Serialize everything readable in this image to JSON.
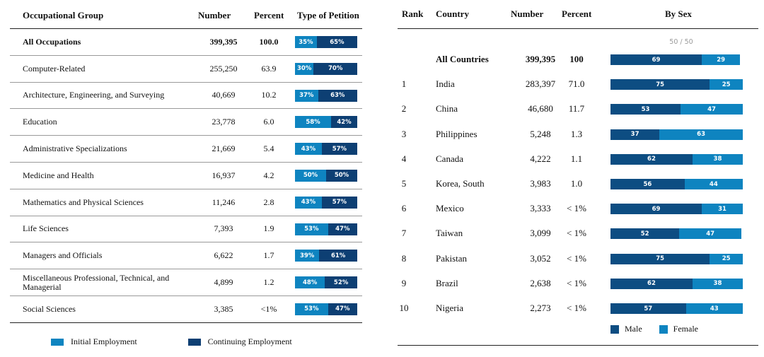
{
  "colors": {
    "initial": "#0e84c0",
    "continuing": "#0d3f73",
    "male": "#0d4d82",
    "female": "#0e84c0"
  },
  "chart_data": [
    {
      "type": "table",
      "columns": [
        "Occupational Group",
        "Number",
        "Percent",
        "Type of Petition"
      ],
      "legend": [
        "Initial Employment",
        "Continuing Employment"
      ],
      "rows": [
        {
          "group": "All Occupations",
          "number": "399,395",
          "percent": "100.0",
          "initial": 35,
          "continuing": 65,
          "initial_label": "35%",
          "continuing_label": "65%",
          "bold": true
        },
        {
          "group": "Computer-Related",
          "number": "255,250",
          "percent": "63.9",
          "initial": 30,
          "continuing": 70,
          "initial_label": "30%",
          "continuing_label": "70%"
        },
        {
          "group": "Architecture, Engineering, and Surveying",
          "number": "40,669",
          "percent": "10.2",
          "initial": 37,
          "continuing": 63,
          "initial_label": "37%",
          "continuing_label": "63%"
        },
        {
          "group": "Education",
          "number": "23,778",
          "percent": "6.0",
          "initial": 58,
          "continuing": 42,
          "initial_label": "58%",
          "continuing_label": "42%"
        },
        {
          "group": "Administrative Specializations",
          "number": "21,669",
          "percent": "5.4",
          "initial": 43,
          "continuing": 57,
          "initial_label": "43%",
          "continuing_label": "57%"
        },
        {
          "group": "Medicine and Health",
          "number": "16,937",
          "percent": "4.2",
          "initial": 50,
          "continuing": 50,
          "initial_label": "50%",
          "continuing_label": "50%"
        },
        {
          "group": "Mathematics and Physical Sciences",
          "number": "11,246",
          "percent": "2.8",
          "initial": 43,
          "continuing": 57,
          "initial_label": "43%",
          "continuing_label": "57%"
        },
        {
          "group": "Life Sciences",
          "number": "7,393",
          "percent": "1.9",
          "initial": 53,
          "continuing": 47,
          "initial_label": "53%",
          "continuing_label": "47%"
        },
        {
          "group": "Managers and Officials",
          "number": "6,622",
          "percent": "1.7",
          "initial": 39,
          "continuing": 61,
          "initial_label": "39%",
          "continuing_label": "61%"
        },
        {
          "group": "Miscellaneous Professional, Technical, and Managerial",
          "number": "4,899",
          "percent": "1.2",
          "initial": 48,
          "continuing": 52,
          "initial_label": "48%",
          "continuing_label": "52%"
        },
        {
          "group": "Social Sciences",
          "number": "3,385",
          "percent": "<1%",
          "initial": 53,
          "continuing": 47,
          "initial_label": "53%",
          "continuing_label": "47%"
        }
      ]
    },
    {
      "type": "table",
      "columns": [
        "Rank",
        "Country",
        "Number",
        "Percent",
        "By Sex"
      ],
      "scale_label": "50 / 50",
      "legend": [
        "Male",
        "Female"
      ],
      "rows": [
        {
          "rank": "",
          "country": "All Countries",
          "number": "399,395",
          "percent": "100",
          "male": 69,
          "female": 29,
          "male_label": "69",
          "female_label": "29",
          "bold": true
        },
        {
          "rank": "1",
          "country": "India",
          "number": "283,397",
          "percent": "71.0",
          "male": 75,
          "female": 25,
          "male_label": "75",
          "female_label": "25"
        },
        {
          "rank": "2",
          "country": "China",
          "number": "46,680",
          "percent": "11.7",
          "male": 53,
          "female": 47,
          "male_label": "53",
          "female_label": "47"
        },
        {
          "rank": "3",
          "country": "Philippines",
          "number": "5,248",
          "percent": "1.3",
          "male": 37,
          "female": 63,
          "male_label": "37",
          "female_label": "63"
        },
        {
          "rank": "4",
          "country": "Canada",
          "number": "4,222",
          "percent": "1.1",
          "male": 62,
          "female": 38,
          "male_label": "62",
          "female_label": "38"
        },
        {
          "rank": "5",
          "country": "Korea, South",
          "number": "3,983",
          "percent": "1.0",
          "male": 56,
          "female": 44,
          "male_label": "56",
          "female_label": "44"
        },
        {
          "rank": "6",
          "country": "Mexico",
          "number": "3,333",
          "percent": "< 1%",
          "male": 69,
          "female": 31,
          "male_label": "69",
          "female_label": "31"
        },
        {
          "rank": "7",
          "country": "Taiwan",
          "number": "3,099",
          "percent": "< 1%",
          "male": 52,
          "female": 47,
          "male_label": "52",
          "female_label": "47"
        },
        {
          "rank": "8",
          "country": "Pakistan",
          "number": "3,052",
          "percent": "< 1%",
          "male": 75,
          "female": 25,
          "male_label": "75",
          "female_label": "25"
        },
        {
          "rank": "9",
          "country": "Brazil",
          "number": "2,638",
          "percent": "< 1%",
          "male": 62,
          "female": 38,
          "male_label": "62",
          "female_label": "38"
        },
        {
          "rank": "10",
          "country": "Nigeria",
          "number": "2,273",
          "percent": "< 1%",
          "male": 57,
          "female": 43,
          "male_label": "57",
          "female_label": "43"
        }
      ]
    }
  ]
}
